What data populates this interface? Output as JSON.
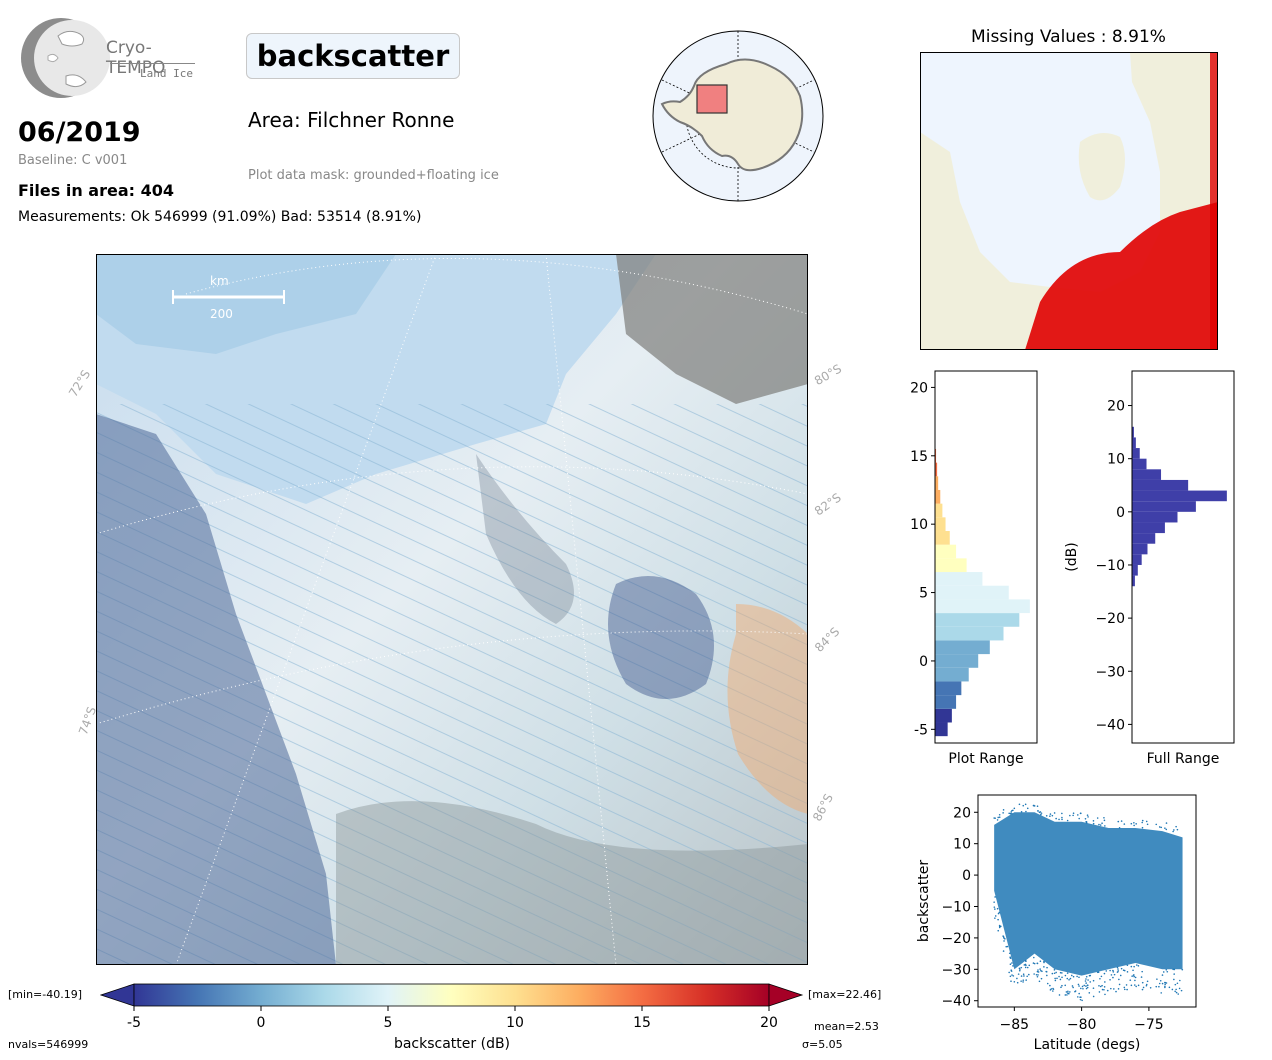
{
  "logo": {
    "name": "Cryo-TEMPO",
    "subtitle": "Land Ice"
  },
  "header": {
    "parameter": "backscatter",
    "date": "06/2019",
    "baseline": "Baseline: C v001",
    "files_in_area": "Files in area: 404",
    "measurements": "Measurements: Ok 546999 (91.09%) Bad: 53514 (8.91%)",
    "area": "Area: Filchner Ronne",
    "mask": "Plot data mask: grounded+floating ice"
  },
  "missing_panel": {
    "title": "Missing Values : 8.91%"
  },
  "map": {
    "scale_unit": "km",
    "scale_value": "200",
    "lat_labels": [
      "72°S",
      "74°S",
      "80°S",
      "82°S",
      "84°S",
      "86°S"
    ]
  },
  "colorbar": {
    "label": "backscatter (dB)",
    "ticks": [
      "-5",
      "0",
      "5",
      "10",
      "15",
      "20"
    ],
    "tick_values": [
      -5,
      0,
      5,
      10,
      15,
      20
    ],
    "range": [
      -5,
      20
    ],
    "min_label": "[min=-40.19]",
    "max_label": "[max=22.46]",
    "nvals": "nvals=546999",
    "mean": "mean=2.53",
    "sigma": "σ=5.05",
    "colors": [
      "#313695",
      "#4575b4",
      "#74add1",
      "#abd9e9",
      "#e0f3f8",
      "#ffffbf",
      "#fee090",
      "#fdae61",
      "#f46d43",
      "#d73027",
      "#a50026"
    ]
  },
  "chart_data": [
    {
      "type": "bar",
      "name": "plot-range-histogram",
      "orientation": "horizontal",
      "xlabel": "Plot Range",
      "ylim": [
        -6,
        21.2
      ],
      "yticks": [
        "-5",
        "0",
        "5",
        "10",
        "15",
        "20"
      ],
      "ytick_values": [
        -5,
        0,
        5,
        10,
        15,
        20
      ],
      "bin_centers": [
        -5,
        -4,
        -3,
        -2,
        -1,
        0,
        1,
        2,
        3,
        4,
        5,
        6,
        7,
        8,
        9,
        10,
        11,
        12,
        13,
        14,
        15
      ],
      "values": [
        0.12,
        0.16,
        0.2,
        0.25,
        0.32,
        0.41,
        0.52,
        0.65,
        0.8,
        0.9,
        0.7,
        0.45,
        0.3,
        0.2,
        0.14,
        0.1,
        0.07,
        0.05,
        0.03,
        0.02,
        0.01
      ]
    },
    {
      "type": "bar",
      "name": "full-range-histogram",
      "orientation": "horizontal",
      "xlabel": "Full Range",
      "ylabel": "(dB)",
      "ylim": [
        -43.5,
        26.5
      ],
      "yticks": [
        "20",
        "10",
        "0",
        "−10",
        "−20",
        "−30",
        "−40"
      ],
      "ytick_values": [
        20,
        10,
        0,
        -10,
        -20,
        -30,
        -40
      ],
      "bin_centers": [
        -13,
        -11,
        -9,
        -7,
        -5,
        -3,
        -1,
        1,
        3,
        5,
        7,
        9,
        11,
        13,
        15
      ],
      "values": [
        0.03,
        0.06,
        0.1,
        0.16,
        0.24,
        0.34,
        0.47,
        0.66,
        0.98,
        0.58,
        0.3,
        0.15,
        0.08,
        0.04,
        0.02
      ]
    },
    {
      "type": "scatter",
      "name": "backscatter-vs-latitude",
      "xlabel": "Latitude (degs)",
      "ylabel": "backscatter",
      "xlim": [
        -87.7,
        -71.5
      ],
      "ylim": [
        -42,
        25.5
      ],
      "xticks": [
        "−85",
        "−80",
        "−75"
      ],
      "xtick_values": [
        -85,
        -80,
        -75
      ],
      "yticks": [
        "20",
        "10",
        "0",
        "−10",
        "−20",
        "−30",
        "−40"
      ],
      "ytick_values": [
        20,
        10,
        0,
        -10,
        -20,
        -30,
        -40
      ],
      "x_range": [
        -86.5,
        -72.5
      ],
      "upper_envelope": [
        [
          -86.5,
          16
        ],
        [
          -85,
          20
        ],
        [
          -83.5,
          20
        ],
        [
          -82,
          17
        ],
        [
          -80,
          17
        ],
        [
          -78,
          15
        ],
        [
          -76,
          15
        ],
        [
          -74,
          14
        ],
        [
          -72.5,
          12
        ]
      ],
      "lower_envelope": [
        [
          -86.5,
          -5
        ],
        [
          -85,
          -30
        ],
        [
          -83.5,
          -25
        ],
        [
          -82,
          -30
        ],
        [
          -80,
          -32
        ],
        [
          -78,
          -30
        ],
        [
          -76,
          -28
        ],
        [
          -74,
          -30
        ],
        [
          -72.5,
          -30
        ]
      ],
      "color": "#1f77b4"
    }
  ]
}
